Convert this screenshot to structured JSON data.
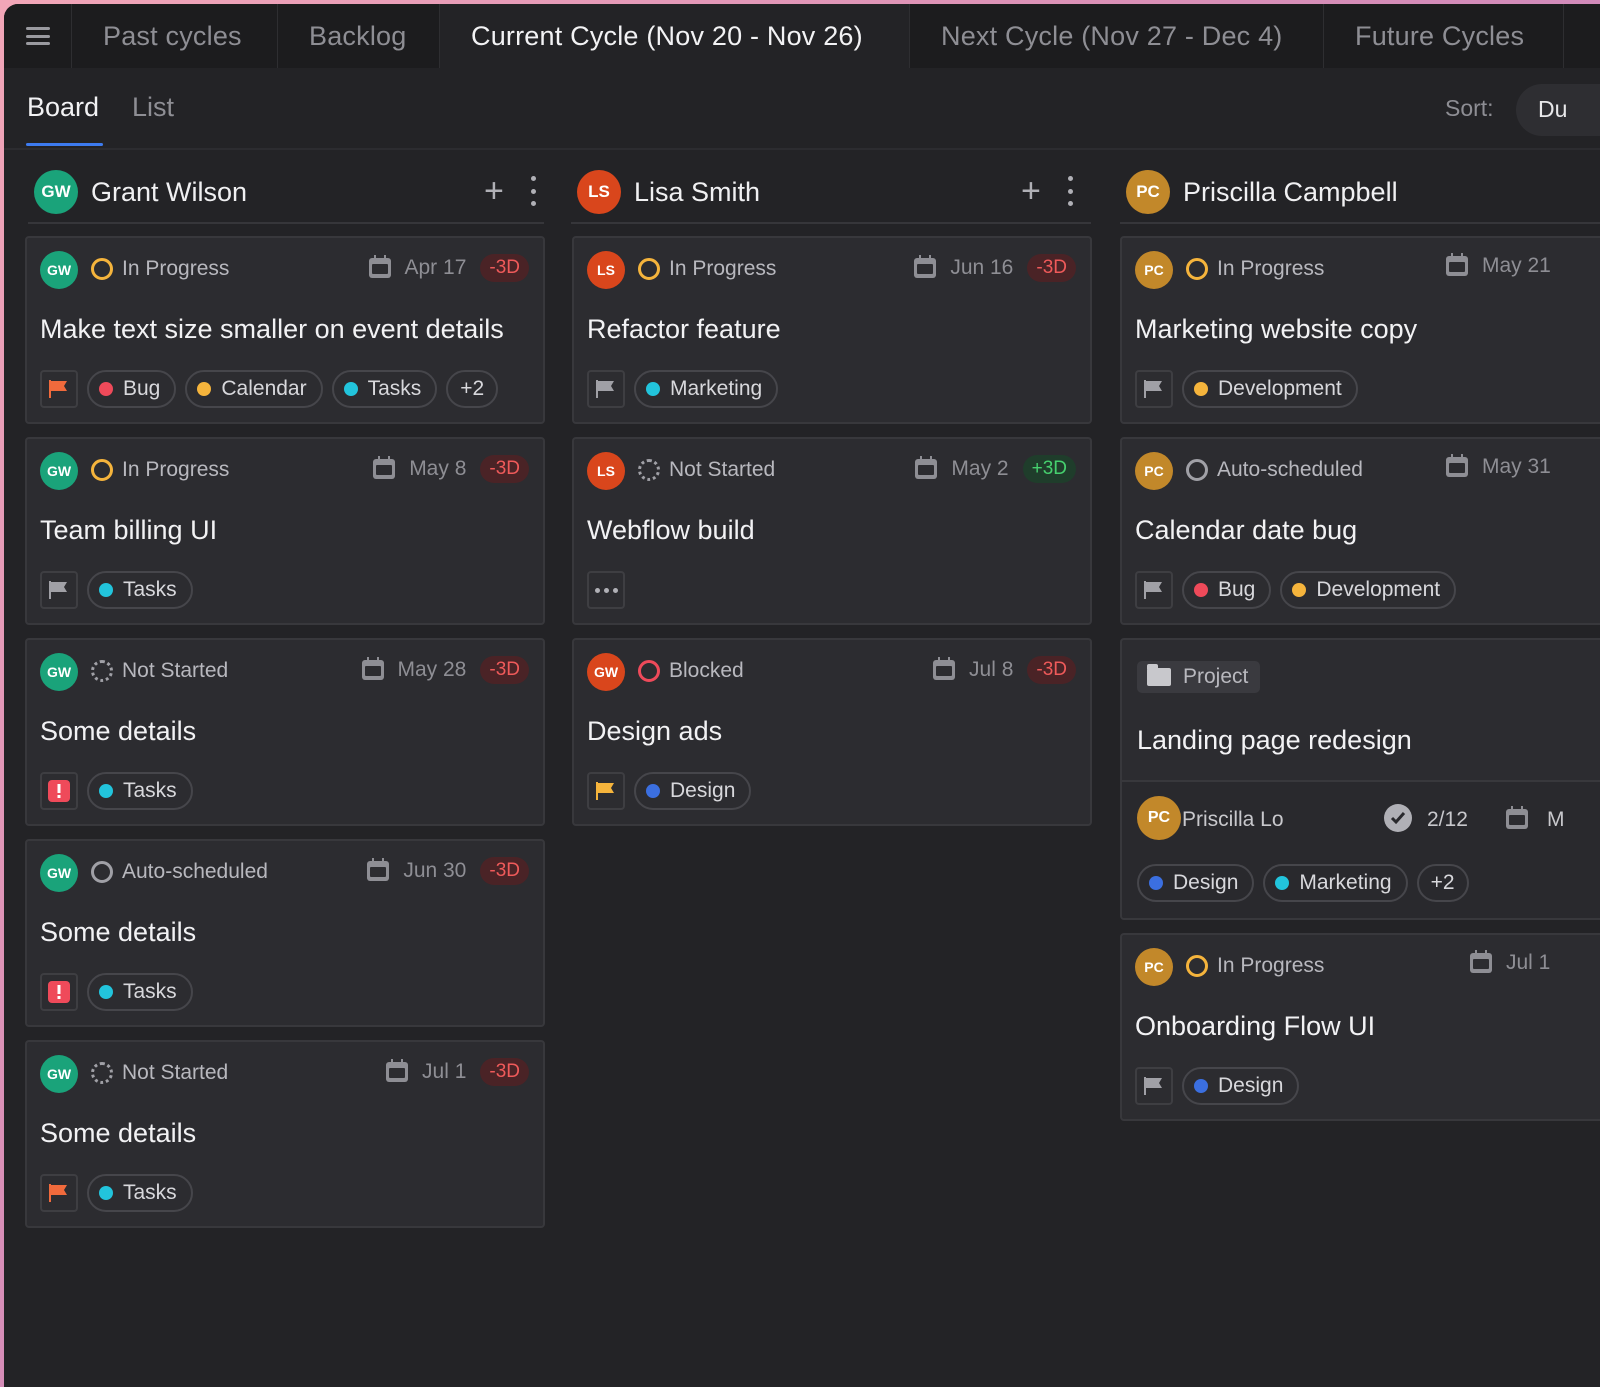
{
  "topbar": {
    "tabs": [
      {
        "label": "Past cycles"
      },
      {
        "label": "Backlog"
      },
      {
        "label": "Current Cycle (Nov 20 - Nov 26)"
      },
      {
        "label": "Next Cycle (Nov 27 - Dec 4)"
      },
      {
        "label": "Future Cycles"
      }
    ],
    "active_tab": 2
  },
  "views": {
    "board": "Board",
    "list": "List",
    "active": "Board"
  },
  "sort": {
    "label": "Sort:",
    "value": "Du"
  },
  "colors": {
    "accent": "#3d7bf0",
    "late": "#ef5a5a",
    "early": "#46d06e",
    "gw": "#1aa37a",
    "ls": "#d9461c",
    "pc": "#c2882a"
  },
  "columns": [
    {
      "initials": "GW",
      "name": "Grant Wilson",
      "cards": [
        {
          "initials": "GW",
          "status": "In Progress",
          "status_icon": "in-progress-icon",
          "date": "Apr 17",
          "delta": "-3D",
          "title": "Make text size smaller on event details",
          "flag": "orange-flag",
          "tags": [
            {
              "label": "Bug",
              "color": "#ef4a5a"
            },
            {
              "label": "Calendar",
              "color": "#f5b43c"
            },
            {
              "label": "Tasks",
              "color": "#22c4dc"
            }
          ],
          "more": "+2"
        },
        {
          "initials": "GW",
          "status": "In Progress",
          "status_icon": "in-progress-icon",
          "date": "May 8",
          "delta": "-3D",
          "title": "Team billing UI",
          "flag": "grey-flag",
          "tags": [
            {
              "label": "Tasks",
              "color": "#22c4dc"
            }
          ]
        },
        {
          "initials": "GW",
          "status": "Not Started",
          "status_icon": "not-started-icon",
          "date": "May 28",
          "delta": "-3D",
          "title": "Some details",
          "flag": "urgent-icon",
          "tags": [
            {
              "label": "Tasks",
              "color": "#22c4dc"
            }
          ]
        },
        {
          "initials": "GW",
          "status": "Auto-scheduled",
          "status_icon": "auto-scheduled-icon",
          "date": "Jun 30",
          "delta": "-3D",
          "title": "Some details",
          "flag": "urgent-icon",
          "tags": [
            {
              "label": "Tasks",
              "color": "#22c4dc"
            }
          ]
        },
        {
          "initials": "GW",
          "status": "Not Started",
          "status_icon": "not-started-icon",
          "date": "Jul 1",
          "delta": "-3D",
          "title": "Some details",
          "flag": "orange-flag",
          "tags": [
            {
              "label": "Tasks",
              "color": "#22c4dc"
            }
          ]
        }
      ]
    },
    {
      "initials": "LS",
      "name": "Lisa Smith",
      "cards": [
        {
          "initials": "LS",
          "status": "In Progress",
          "status_icon": "in-progress-icon",
          "date": "Jun 16",
          "delta": "-3D",
          "title": "Refactor feature",
          "flag": "grey-flag",
          "tags": [
            {
              "label": "Marketing",
              "color": "#22c4dc"
            }
          ]
        },
        {
          "initials": "LS",
          "status": "Not Started",
          "status_icon": "not-started-icon",
          "date": "May 2",
          "delta": "+3D",
          "title": "Webflow build",
          "flag": "more-icon",
          "tags": []
        },
        {
          "initials": "GW",
          "status": "Blocked",
          "status_icon": "blocked-icon",
          "date": "Jul 8",
          "delta": "-3D",
          "title": "Design ads",
          "flag": "yellow-flag",
          "tags": [
            {
              "label": "Design",
              "color": "#3b6fe0"
            }
          ]
        }
      ]
    },
    {
      "initials": "PC",
      "name": "Priscilla Campbell",
      "cards": [
        {
          "initials": "PC",
          "status": "In Progress",
          "status_icon": "in-progress-icon",
          "date": "May 21",
          "title": "Marketing website copy",
          "flag": "grey-flag",
          "tags": [
            {
              "label": "Development",
              "color": "#f5b43c"
            }
          ]
        },
        {
          "initials": "PC",
          "status": "Auto-scheduled",
          "status_icon": "auto-scheduled-icon",
          "date": "May 31",
          "title": "Calendar date bug",
          "flag": "grey-flag",
          "tags": [
            {
              "label": "Bug",
              "color": "#ef4a5a"
            },
            {
              "label": "Development",
              "color": "#f5b43c"
            }
          ]
        }
      ],
      "project": {
        "badge": "Project",
        "title": "Landing page redesign",
        "owner_initials": "PC",
        "owner": "Priscilla Lo",
        "progress": "2/12",
        "date": "M",
        "tags": [
          {
            "label": "Design",
            "color": "#3b6fe0"
          },
          {
            "label": "Marketing",
            "color": "#22c4dc"
          }
        ],
        "more": "+2"
      },
      "last_card": {
        "initials": "PC",
        "status": "In Progress",
        "status_icon": "in-progress-icon",
        "date": "Jul 1",
        "title": "Onboarding Flow UI",
        "flag": "grey-flag",
        "tags": [
          {
            "label": "Design",
            "color": "#3b6fe0"
          }
        ]
      }
    }
  ]
}
